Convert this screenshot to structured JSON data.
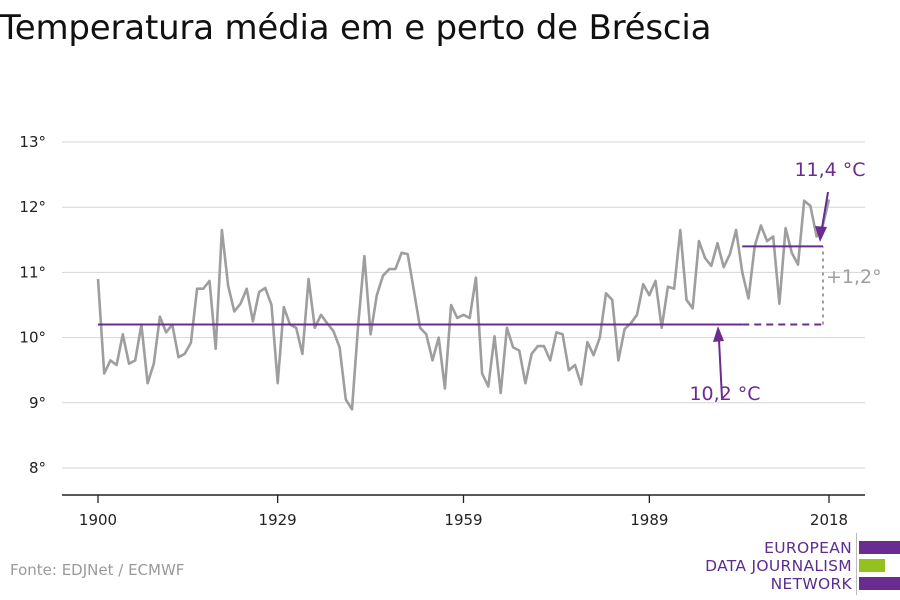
{
  "colors": {
    "accent": "#6a2c91",
    "series": "#9e9e9e",
    "delta": "#9e9e9e",
    "green": "#95c11f"
  },
  "chart_data": {
    "type": "line",
    "title": "Temperatura média em e perto de Bréscia",
    "xlabel": "",
    "ylabel": "",
    "xlim": [
      1900,
      2018
    ],
    "ylim": [
      8,
      13
    ],
    "yticks": [
      8,
      9,
      10,
      11,
      12,
      13
    ],
    "ytick_labels": [
      "8°",
      "9°",
      "10°",
      "11°",
      "12°",
      "13°"
    ],
    "xticks": [
      1900,
      1929,
      1959,
      1989,
      2018
    ],
    "xtick_labels": [
      "1900",
      "1929",
      "1959",
      "1989",
      "2018"
    ],
    "grid": "horizontal",
    "series": [
      {
        "x": [
          1900,
          1901,
          1902,
          1903,
          1904,
          1905,
          1906,
          1907,
          1908,
          1909,
          1910,
          1911,
          1912,
          1913,
          1914,
          1915,
          1916,
          1917,
          1918,
          1919,
          1920,
          1921,
          1922,
          1923,
          1924,
          1925,
          1926,
          1927,
          1928,
          1929,
          1930,
          1931,
          1932,
          1933,
          1934,
          1935,
          1936,
          1937,
          1938,
          1939,
          1940,
          1941,
          1942,
          1943,
          1944,
          1945,
          1946,
          1947,
          1948,
          1949,
          1950,
          1951,
          1952,
          1953,
          1954,
          1955,
          1956,
          1957,
          1958,
          1959,
          1960,
          1961,
          1962,
          1963,
          1964,
          1965,
          1966,
          1967,
          1968,
          1969,
          1970,
          1971,
          1972,
          1973,
          1974,
          1975,
          1976,
          1977,
          1978,
          1979,
          1980,
          1981,
          1982,
          1983,
          1984,
          1985,
          1986,
          1987,
          1988,
          1989,
          1990,
          1991,
          1992,
          1993,
          1994,
          1995,
          1996,
          1997,
          1998,
          1999,
          2000,
          2001,
          2002,
          2003,
          2004,
          2005,
          2006,
          2007,
          2008,
          2009,
          2010,
          2011,
          2012,
          2013,
          2014,
          2015,
          2016,
          2017,
          2018
        ],
        "values": [
          10.9,
          9.45,
          9.65,
          9.58,
          10.05,
          9.6,
          9.65,
          10.2,
          9.3,
          9.6,
          10.32,
          10.08,
          10.2,
          9.7,
          9.75,
          9.92,
          10.75,
          10.75,
          10.87,
          9.83,
          11.65,
          10.8,
          10.4,
          10.52,
          10.75,
          10.25,
          10.7,
          10.76,
          10.5,
          9.3,
          10.47,
          10.2,
          10.15,
          9.75,
          10.9,
          10.15,
          10.35,
          10.22,
          10.1,
          9.85,
          9.05,
          8.9,
          10.2,
          11.25,
          10.05,
          10.65,
          10.95,
          11.05,
          11.05,
          11.3,
          11.28,
          10.72,
          10.15,
          10.05,
          9.65,
          10.0,
          9.22,
          10.5,
          10.3,
          10.35,
          10.3,
          10.92,
          9.45,
          9.25,
          10.02,
          9.15,
          10.15,
          9.85,
          9.8,
          9.3,
          9.75,
          9.87,
          9.87,
          9.65,
          10.08,
          10.05,
          9.5,
          9.58,
          9.28,
          9.93,
          9.73,
          10.0,
          10.68,
          10.58,
          9.65,
          10.13,
          10.22,
          10.35,
          10.82,
          10.65,
          10.87,
          10.15,
          10.78,
          10.75,
          11.65,
          10.58,
          10.45,
          11.48,
          11.22,
          11.1,
          11.45,
          11.08,
          11.28,
          11.65,
          11.0,
          10.6,
          11.4,
          11.72,
          11.48,
          11.55,
          10.52,
          11.68,
          11.3,
          11.12,
          12.1,
          12.02,
          11.55,
          11.72,
          12.12
        ]
      }
    ],
    "annotations": {
      "baseline": {
        "value": 10.2,
        "label": "10,2 °C",
        "x_start": 1900,
        "x_end": 2004
      },
      "recent": {
        "value": 11.4,
        "label": "11,4 °C",
        "x_start": 2004,
        "x_end": 2018
      },
      "delta": {
        "label": "+1,2°"
      }
    }
  },
  "source": "Fonte: EDJNet / ECMWF",
  "logo": {
    "line1": "EUROPEAN",
    "line2": "DATA JOURNALISM",
    "line3": "NETWORK"
  }
}
